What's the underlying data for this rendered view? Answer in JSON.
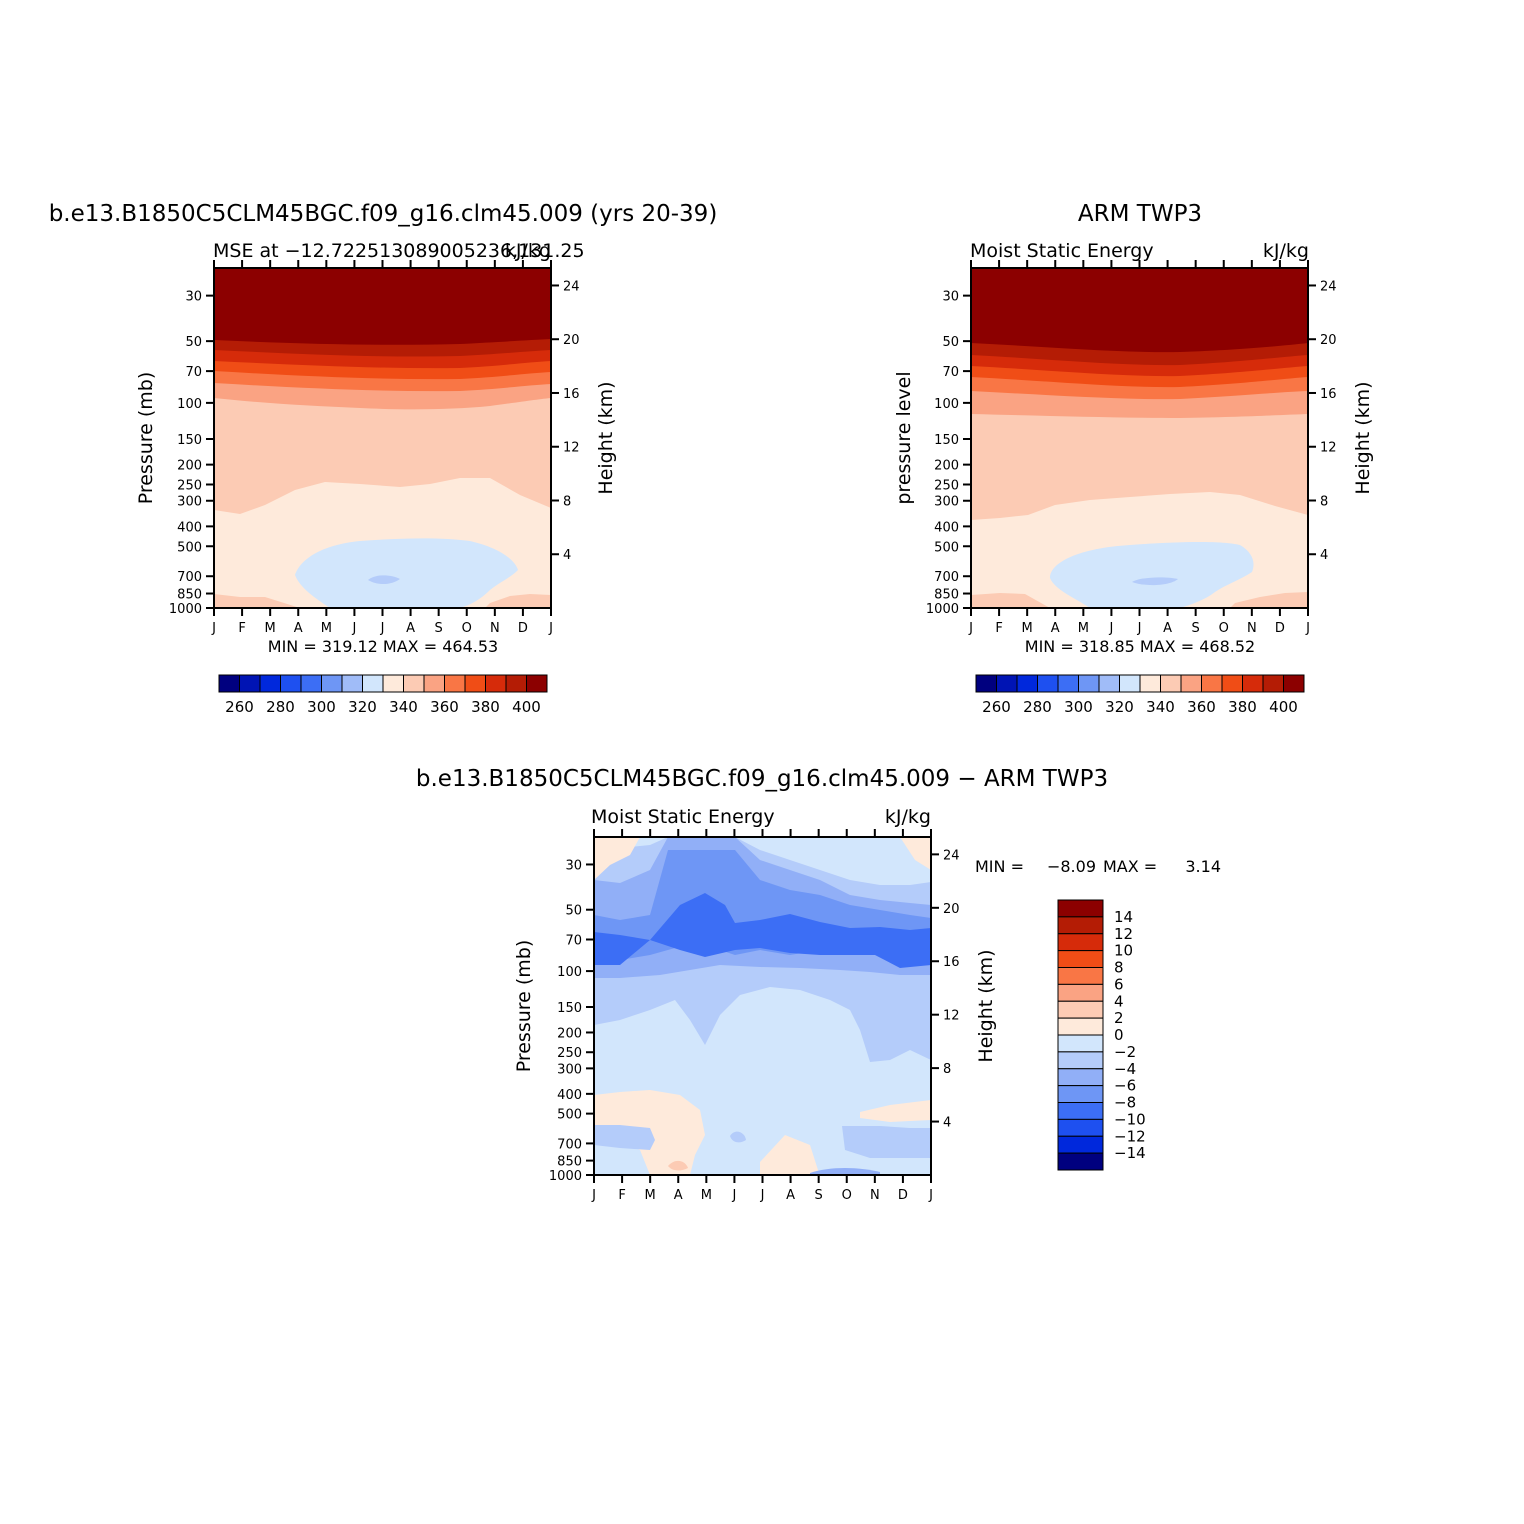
{
  "chart_data": [
    {
      "type": "heatmap",
      "title": "b.e13.B1850C5CLM45BGC.f09_g16.clm45.009 (yrs 20-39)",
      "subtitle_left": "MSE at −12.722513089005236,131.25",
      "subtitle_right": "kJ/kg",
      "xlabel": "",
      "ylabel": "Pressure (mb)",
      "ylabel_right": "Height (km)",
      "x_ticks": [
        "J",
        "F",
        "M",
        "A",
        "M",
        "J",
        "J",
        "A",
        "S",
        "O",
        "N",
        "D",
        "J"
      ],
      "y_ticks": [
        30,
        50,
        70,
        100,
        150,
        200,
        250,
        300,
        400,
        500,
        700,
        850,
        1000
      ],
      "y_ticks_right": [
        24,
        20,
        16,
        12,
        8,
        4
      ],
      "min_max_text": "MIN = 319.12  MAX = 464.53",
      "min": 319.12,
      "max": 464.53,
      "colorbar_labels": [
        "260",
        "280",
        "300",
        "320",
        "340",
        "360",
        "380",
        "400"
      ],
      "contour_bands_note": "Upper levels (<50 mb) >400; 50–100 mb 360–400; 100–300 mb 340–360; 300–700 mb 320–340; mid-year 700 mb minimum 300–320"
    },
    {
      "type": "heatmap",
      "title": "ARM TWP3",
      "subtitle_left": "Moist Static Energy",
      "subtitle_right": "kJ/kg",
      "ylabel": "pressure level",
      "ylabel_right": "Height (km)",
      "x_ticks": [
        "J",
        "F",
        "M",
        "A",
        "M",
        "J",
        "J",
        "A",
        "S",
        "O",
        "N",
        "D",
        "J"
      ],
      "y_ticks": [
        30,
        50,
        70,
        100,
        150,
        200,
        250,
        300,
        400,
        500,
        700,
        850,
        1000
      ],
      "y_ticks_right": [
        24,
        20,
        16,
        12,
        8,
        4
      ],
      "min_max_text": "MIN = 318.85  MAX = 468.52",
      "min": 318.85,
      "max": 468.52,
      "colorbar_labels": [
        "260",
        "280",
        "300",
        "320",
        "340",
        "360",
        "380",
        "400"
      ]
    },
    {
      "type": "heatmap",
      "title": "b.e13.B1850C5CLM45BGC.f09_g16.clm45.009 − ARM TWP3",
      "subtitle_left": "Moist Static Energy",
      "subtitle_right": "kJ/kg",
      "ylabel": "Pressure (mb)",
      "ylabel_right": "Height (km)",
      "x_ticks": [
        "J",
        "F",
        "M",
        "A",
        "M",
        "J",
        "J",
        "A",
        "S",
        "O",
        "N",
        "D",
        "J"
      ],
      "y_ticks": [
        30,
        50,
        70,
        100,
        150,
        200,
        250,
        300,
        400,
        500,
        700,
        850,
        1000
      ],
      "y_ticks_right": [
        24,
        20,
        16,
        12,
        8,
        4
      ],
      "min_label": "MIN =",
      "min_value": "−8.09",
      "max_label": "MAX =",
      "max_value": "3.14",
      "min": -8.09,
      "max": 3.14,
      "colorbar_labels": [
        "14",
        "12",
        "10",
        "8",
        "6",
        "4",
        "2",
        "0",
        "−2",
        "−4",
        "−6",
        "−8",
        "−10",
        "−12",
        "−14"
      ]
    }
  ],
  "colors": {
    "abs_scale": [
      "#00007f",
      "#0014b4",
      "#0028dc",
      "#1e50f0",
      "#3c6ef5",
      "#6e96f5",
      "#a0bcf8",
      "#d2e6fc",
      "#feeadb",
      "#fccbb4",
      "#faa383",
      "#f97645",
      "#f04d16",
      "#d62b0a",
      "#b41c05",
      "#8c0000"
    ],
    "diff_scale": [
      "#8c0000",
      "#b41c05",
      "#d62b0a",
      "#f04d16",
      "#f97645",
      "#faa383",
      "#fccbb4",
      "#feeadb",
      "#d2e6fc",
      "#b4ccfa",
      "#91aff7",
      "#6e96f5",
      "#3c6ef5",
      "#1e50f0",
      "#0028dc",
      "#00007f"
    ]
  }
}
